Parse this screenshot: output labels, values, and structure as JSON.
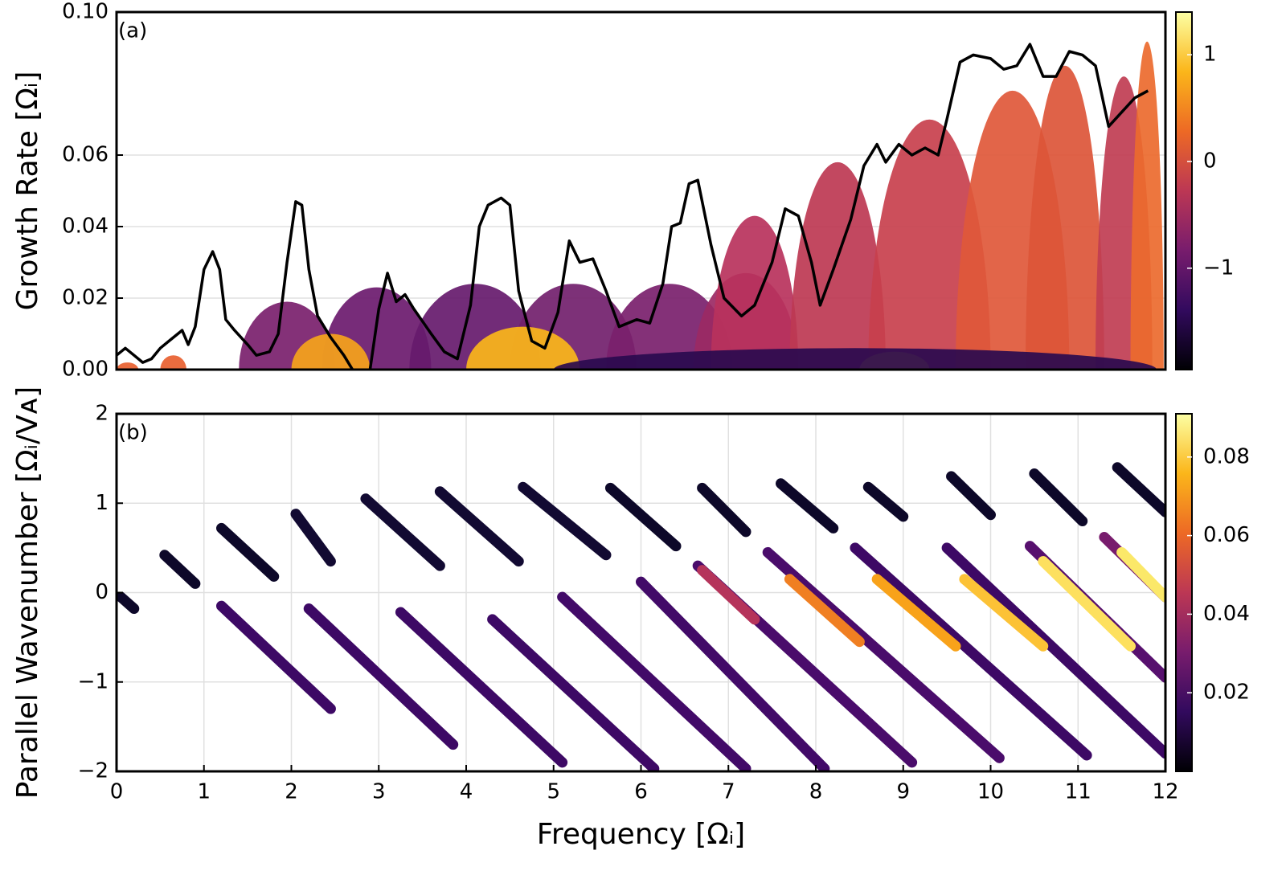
{
  "chart_data": [
    {
      "type": "line",
      "panel_label": "(a)",
      "ylabel": "Growth Rate [Ωᵢ]",
      "xlim": [
        0,
        12
      ],
      "ylim": [
        0,
        0.1
      ],
      "yticks": [
        {
          "value": 0,
          "label": "0.00"
        },
        0.02,
        0.04,
        0.06,
        {
          "value": 0.1,
          "label": "0.10"
        }
      ],
      "grid": true,
      "regions": [
        {
          "color": "#e8602f",
          "xrange": [
            0,
            0.25
          ],
          "peak": 0.002
        },
        {
          "color": "#e8602f",
          "xrange": [
            0.5,
            0.8
          ],
          "peak": 0.004
        },
        {
          "color": "#7a1f6d",
          "xrange": [
            1.4,
            2.5
          ],
          "peak": 0.019
        },
        {
          "color": "#6b1a6e",
          "xrange": [
            2.35,
            3.6
          ],
          "peak": 0.023
        },
        {
          "color": "#661a6d",
          "xrange": [
            3.35,
            4.85
          ],
          "peak": 0.024
        },
        {
          "color": "#721f6c",
          "xrange": [
            4.5,
            5.95
          ],
          "peak": 0.024
        },
        {
          "color": "#7a1f6d",
          "xrange": [
            5.6,
            7.05
          ],
          "peak": 0.024
        },
        {
          "color": "#9b2964",
          "xrange": [
            6.6,
            7.8
          ],
          "peak": 0.027
        },
        {
          "color": "#b8325c",
          "xrange": [
            6.8,
            7.8
          ],
          "peak": 0.043
        },
        {
          "color": "#bd3853",
          "xrange": [
            7.7,
            8.8
          ],
          "peak": 0.058
        },
        {
          "color": "#c8404d",
          "xrange": [
            8.6,
            10.0
          ],
          "peak": 0.07
        },
        {
          "color": "#e0583a",
          "xrange": [
            9.6,
            10.9
          ],
          "peak": 0.078
        },
        {
          "color": "#dc5538",
          "xrange": [
            10.4,
            11.3
          ],
          "peak": 0.085
        },
        {
          "color": "#c03d53",
          "xrange": [
            11.2,
            11.85
          ],
          "peak": 0.082
        },
        {
          "color": "#ec6a2e",
          "xrange": [
            11.6,
            11.98
          ],
          "peak": 0.092
        },
        {
          "color": "#f6a31b",
          "xrange": [
            2.0,
            2.9
          ],
          "peak": 0.01
        },
        {
          "color": "#fbb61a",
          "xrange": [
            4.0,
            5.3
          ],
          "peak": 0.012
        },
        {
          "color": "#fcd439",
          "xrange": [
            8.5,
            9.3
          ],
          "peak": 0.005
        },
        {
          "color": "#2a0a4f",
          "xrange": [
            5.0,
            11.9
          ],
          "peak": 0.006
        }
      ],
      "series": [
        {
          "color": "#000000",
          "x": [
            0,
            0.1,
            0.2,
            0.3,
            0.4,
            0.5,
            0.6,
            0.75,
            0.82,
            0.9,
            1.0,
            1.1,
            1.18,
            1.25,
            1.35,
            1.5,
            1.6,
            1.75,
            1.85,
            1.95,
            2.05,
            2.12,
            2.2,
            2.3,
            2.45,
            2.6,
            2.7,
            2.8,
            2.9,
            3.0,
            3.1,
            3.2,
            3.3,
            3.4,
            3.6,
            3.75,
            3.9,
            4.05,
            4.15,
            4.25,
            4.4,
            4.5,
            4.6,
            4.75,
            4.9,
            5.05,
            5.18,
            5.3,
            5.45,
            5.6,
            5.75,
            5.95,
            6.1,
            6.25,
            6.35,
            6.45,
            6.55,
            6.65,
            6.8,
            6.95,
            7.15,
            7.3,
            7.5,
            7.65,
            7.8,
            7.95,
            8.05,
            8.2,
            8.4,
            8.55,
            8.7,
            8.8,
            8.95,
            9.1,
            9.25,
            9.4,
            9.5,
            9.65,
            9.8,
            10.0,
            10.15,
            10.3,
            10.45,
            10.6,
            10.75,
            10.9,
            11.05,
            11.2,
            11.35,
            11.5,
            11.65,
            11.8
          ],
          "values": [
            0.004,
            0.006,
            0.004,
            0.002,
            0.003,
            0.006,
            0.008,
            0.011,
            0.007,
            0.012,
            0.028,
            0.033,
            0.028,
            0.014,
            0.011,
            0.007,
            0.004,
            0.005,
            0.01,
            0.03,
            0.047,
            0.046,
            0.028,
            0.015,
            0.009,
            0.004,
            0.0,
            null,
            0.0,
            0.017,
            0.027,
            0.019,
            0.021,
            0.017,
            0.01,
            0.005,
            0.003,
            0.018,
            0.04,
            0.046,
            0.048,
            0.046,
            0.022,
            0.008,
            0.006,
            0.016,
            0.036,
            0.03,
            0.031,
            0.022,
            0.012,
            0.014,
            0.013,
            0.024,
            0.04,
            0.041,
            0.052,
            0.053,
            0.035,
            0.02,
            0.015,
            0.018,
            0.03,
            0.045,
            0.043,
            0.03,
            0.018,
            0.028,
            0.042,
            0.057,
            0.063,
            0.058,
            0.063,
            0.06,
            0.062,
            0.06,
            0.07,
            0.086,
            0.088,
            0.087,
            0.084,
            0.085,
            0.091,
            0.082,
            0.082,
            0.089,
            0.088,
            0.085,
            0.068,
            0.072,
            0.076,
            0.078
          ]
        }
      ],
      "colorbar": {
        "lim": [
          -1.95,
          1.4
        ],
        "ticks": [
          {
            "value": -1,
            "label": "−1"
          },
          0,
          1
        ],
        "colormap": [
          "#000004",
          "#320a5e",
          "#781c6d",
          "#bc3754",
          "#ed6925",
          "#fbb61a",
          "#fcffa4"
        ]
      }
    },
    {
      "type": "line",
      "panel_label": "(b)",
      "ylabel": "Parallel Wavenumber [Ωᵢ/Vᴀ]",
      "xlabel": "Frequency [Ωᵢ]",
      "xlim": [
        0,
        12
      ],
      "ylim": [
        -2,
        2
      ],
      "xticks": [
        0,
        1,
        2,
        3,
        4,
        5,
        6,
        7,
        8,
        9,
        10,
        11,
        12
      ],
      "yticks": [
        {
          "value": -2,
          "label": "−2"
        },
        {
          "value": -1,
          "label": "−1"
        },
        0,
        1,
        2
      ],
      "grid": true,
      "series": [
        {
          "color": "#0d0829",
          "x": [
            0.05,
            0.2
          ],
          "values": [
            -0.05,
            -0.18
          ]
        },
        {
          "color": "#0d0829",
          "x": [
            0.55,
            0.9
          ],
          "values": [
            0.42,
            0.1
          ]
        },
        {
          "color": "#0d0829",
          "x": [
            1.2,
            1.8
          ],
          "values": [
            0.72,
            0.18
          ]
        },
        {
          "color": "#120a32",
          "x": [
            2.05,
            2.45
          ],
          "values": [
            0.88,
            0.35
          ]
        },
        {
          "color": "#120a32",
          "x": [
            2.85,
            3.7
          ],
          "values": [
            1.05,
            0.3
          ]
        },
        {
          "color": "#120a32",
          "x": [
            3.7,
            4.6
          ],
          "values": [
            1.13,
            0.35
          ]
        },
        {
          "color": "#120a32",
          "x": [
            4.65,
            5.6
          ],
          "values": [
            1.18,
            0.42
          ]
        },
        {
          "color": "#0d0829",
          "x": [
            5.65,
            6.4
          ],
          "values": [
            1.17,
            0.52
          ]
        },
        {
          "color": "#0d0829",
          "x": [
            6.7,
            7.2
          ],
          "values": [
            1.17,
            0.68
          ]
        },
        {
          "color": "#0d0829",
          "x": [
            7.6,
            8.2
          ],
          "values": [
            1.22,
            0.72
          ]
        },
        {
          "color": "#0d0829",
          "x": [
            8.6,
            9.0
          ],
          "values": [
            1.18,
            0.85
          ]
        },
        {
          "color": "#0d0829",
          "x": [
            9.55,
            10.0
          ],
          "values": [
            1.3,
            0.87
          ]
        },
        {
          "color": "#0d0829",
          "x": [
            10.5,
            11.05
          ],
          "values": [
            1.33,
            0.8
          ]
        },
        {
          "color": "#0d0829",
          "x": [
            11.45,
            12.0
          ],
          "values": [
            1.4,
            0.9
          ]
        },
        {
          "color": "#3d0965",
          "x": [
            1.2,
            2.45
          ],
          "values": [
            -0.15,
            -1.3
          ]
        },
        {
          "color": "#3d0965",
          "x": [
            2.2,
            3.85
          ],
          "values": [
            -0.18,
            -1.7
          ]
        },
        {
          "color": "#3d0965",
          "x": [
            3.25,
            5.1
          ],
          "values": [
            -0.22,
            -1.9
          ]
        },
        {
          "color": "#3d0965",
          "x": [
            4.3,
            6.15
          ],
          "values": [
            -0.3,
            -1.97
          ]
        },
        {
          "color": "#420a68",
          "x": [
            5.1,
            7.2
          ],
          "values": [
            -0.05,
            -1.97
          ]
        },
        {
          "color": "#420a68",
          "x": [
            6.0,
            8.1
          ],
          "values": [
            0.12,
            -1.97
          ]
        },
        {
          "color": "#4a0c6b",
          "x": [
            6.65,
            9.1
          ],
          "values": [
            0.3,
            -1.9
          ]
        },
        {
          "color": "#4a0c6b",
          "x": [
            7.45,
            10.1
          ],
          "values": [
            0.45,
            -1.85
          ]
        },
        {
          "color": "#3d0965",
          "x": [
            8.45,
            11.1
          ],
          "values": [
            0.5,
            -1.82
          ]
        },
        {
          "color": "#3d0965",
          "x": [
            9.5,
            12.0
          ],
          "values": [
            0.5,
            -1.8
          ]
        },
        {
          "color": "#57106e",
          "x": [
            10.45,
            12.0
          ],
          "values": [
            0.52,
            -0.95
          ]
        },
        {
          "color": "#781c6d",
          "x": [
            11.3,
            12.0
          ],
          "values": [
            0.62,
            -0.05
          ]
        },
        {
          "color": "#b5345b",
          "x": [
            6.7,
            7.3
          ],
          "values": [
            0.25,
            -0.3
          ]
        },
        {
          "color": "#f07f22",
          "x": [
            7.7,
            8.5
          ],
          "values": [
            0.15,
            -0.55
          ]
        },
        {
          "color": "#f8a21a",
          "x": [
            8.7,
            9.6
          ],
          "values": [
            0.15,
            -0.6
          ]
        },
        {
          "color": "#fcc236",
          "x": [
            9.7,
            10.6
          ],
          "values": [
            0.15,
            -0.6
          ]
        },
        {
          "color": "#fde05f",
          "x": [
            10.6,
            11.6
          ],
          "values": [
            0.35,
            -0.6
          ]
        },
        {
          "color": "#fbe869",
          "x": [
            11.5,
            12.0
          ],
          "values": [
            0.45,
            -0.05
          ]
        }
      ],
      "colorbar": {
        "lim": [
          0,
          0.091
        ],
        "ticks": [
          0.02,
          0.04,
          0.06,
          0.08
        ],
        "colormap": [
          "#000004",
          "#320a5e",
          "#781c6d",
          "#bc3754",
          "#ed6925",
          "#fbb61a",
          "#fcffa4"
        ]
      }
    }
  ]
}
